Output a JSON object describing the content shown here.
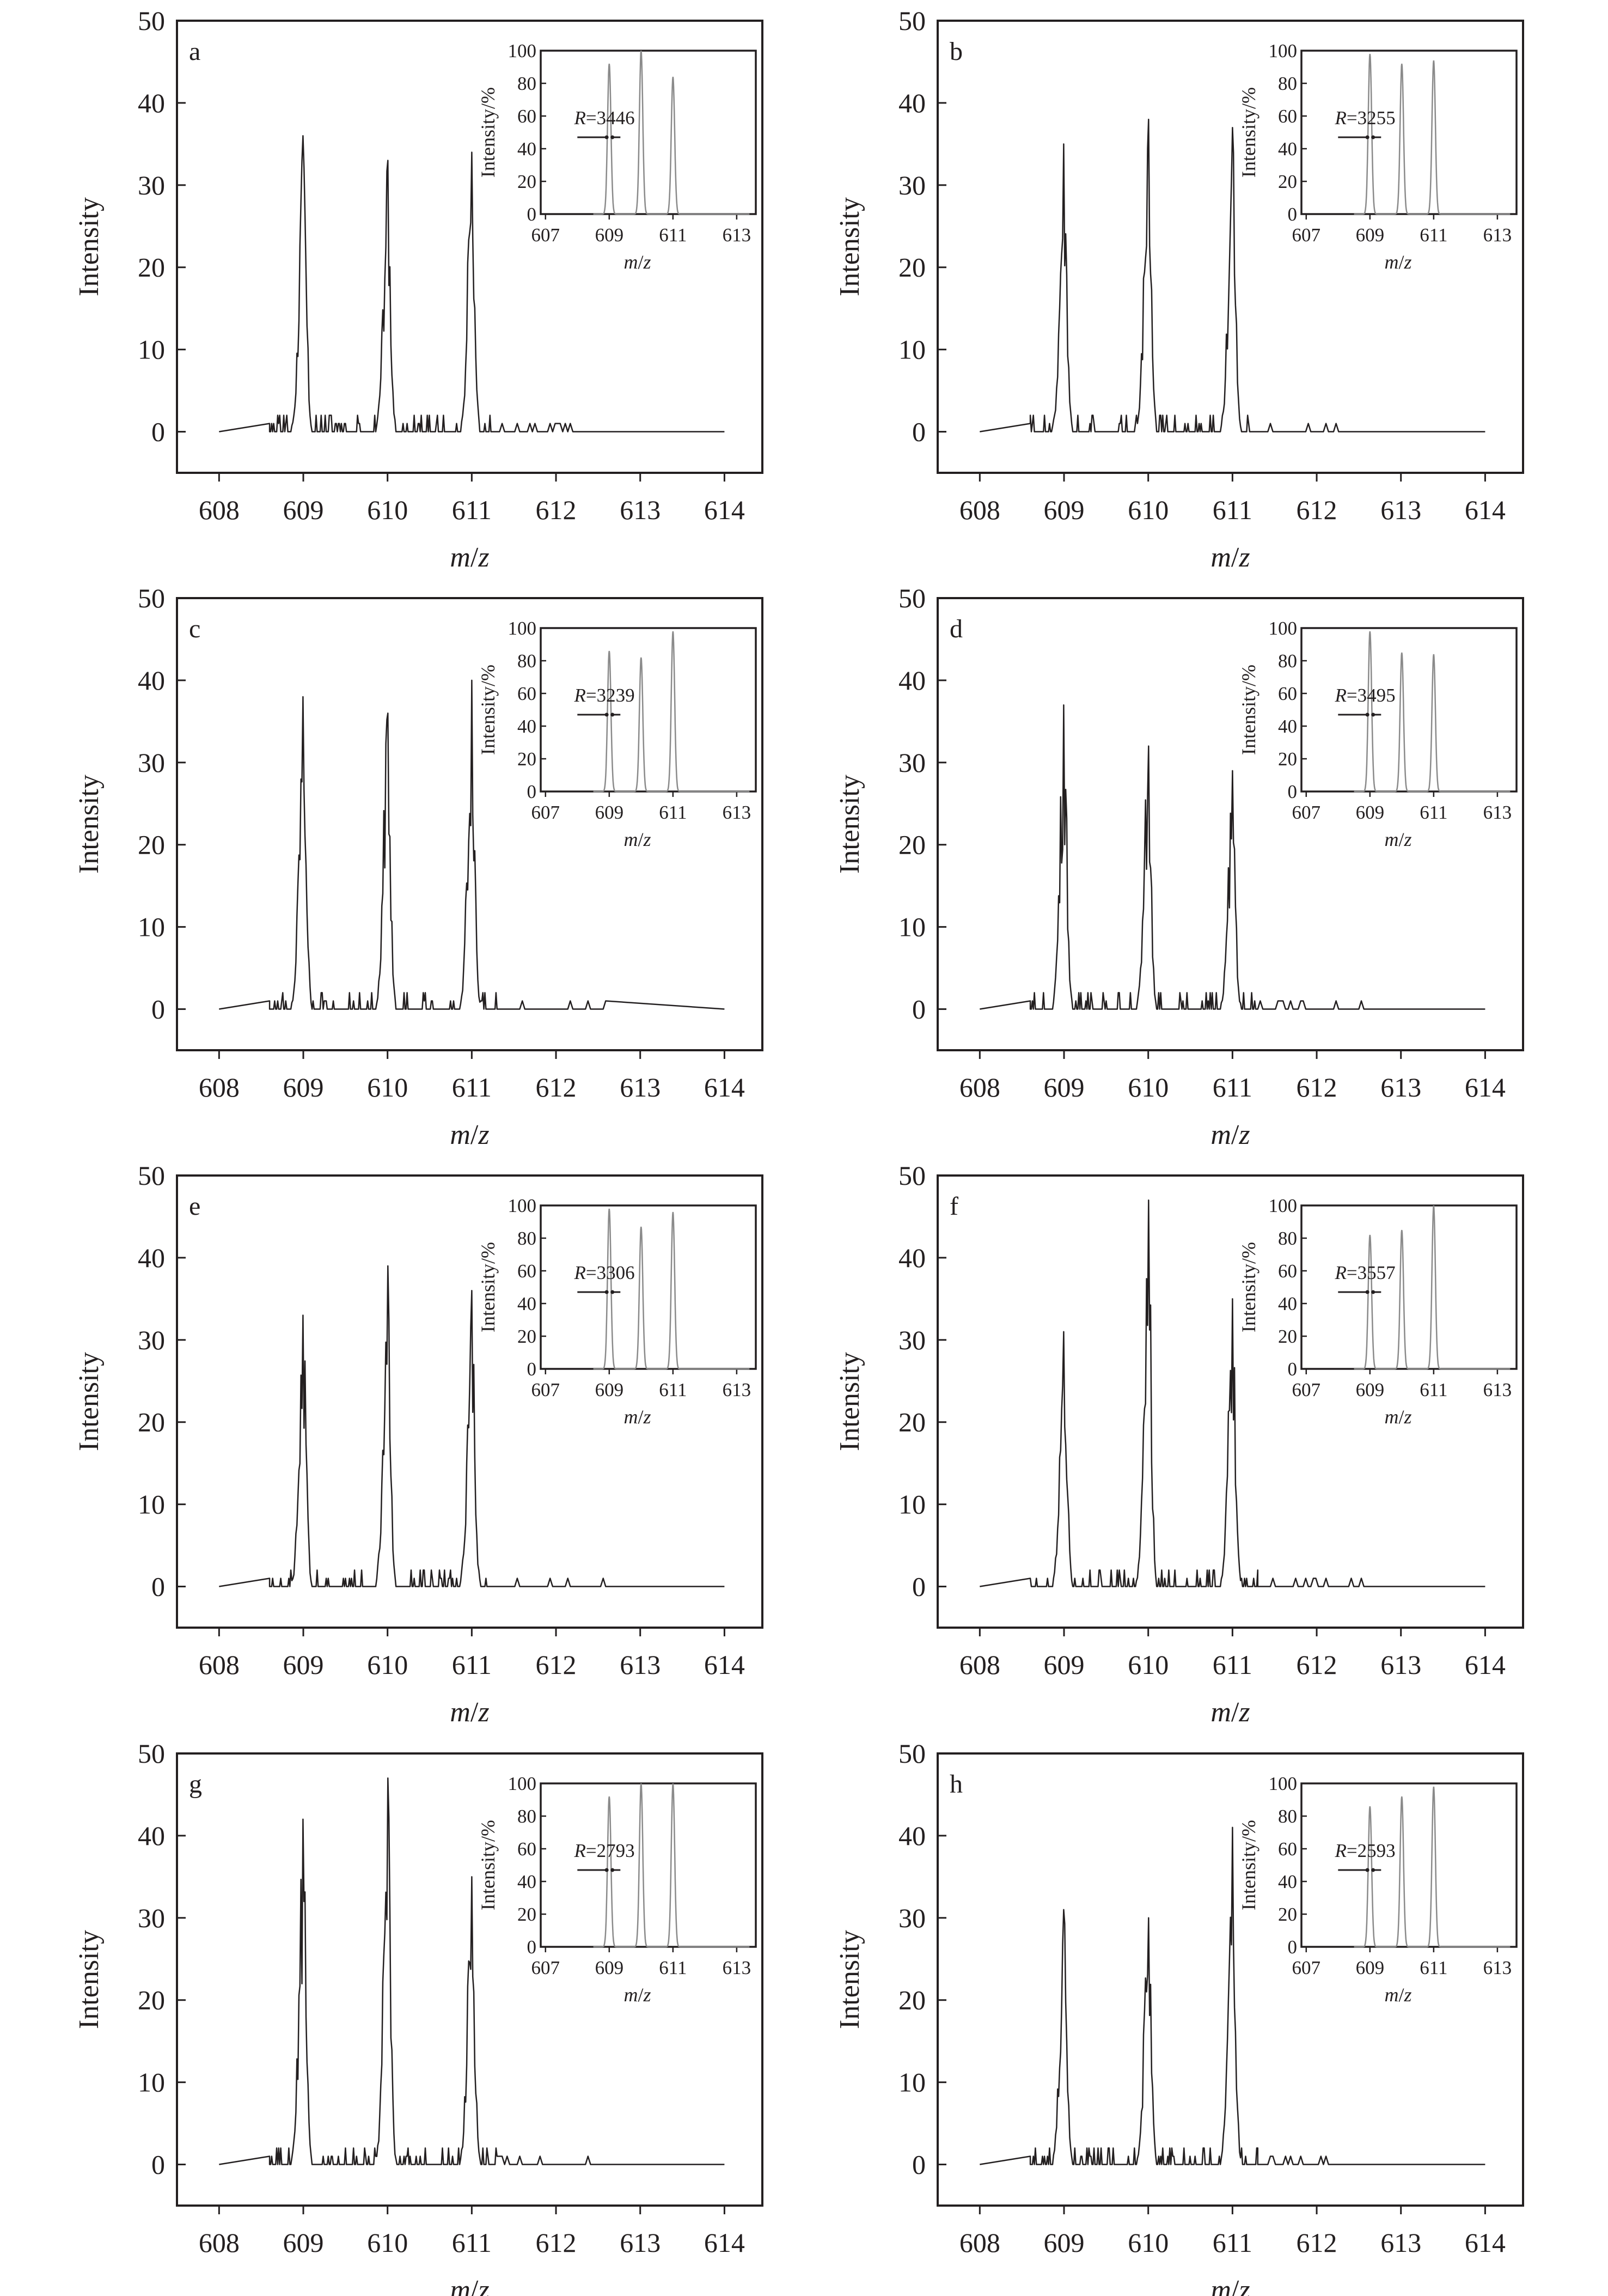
{
  "chart_data": [
    {
      "panel": "a",
      "type": "line",
      "xlabel_main": "m",
      "xlabel_sep": "/",
      "xlabel_z": "z",
      "ylabel": "Intensity",
      "xlim": [
        607.5,
        614.45
      ],
      "ylim": [
        -5,
        50
      ],
      "xticks": [
        "608",
        "609",
        "610",
        "611",
        "612",
        "613",
        "614"
      ],
      "yticks": [
        "0",
        "10",
        "20",
        "30",
        "40",
        "50"
      ],
      "peaks": [
        {
          "mz": 609,
          "intensity": 36
        },
        {
          "mz": 610,
          "intensity": 33
        },
        {
          "mz": 611,
          "intensity": 34
        }
      ],
      "inset": {
        "ylabel": "Intensity/%",
        "xlim": [
          606.85,
          613.6
        ],
        "ylim": [
          0,
          100
        ],
        "xticks": [
          "607",
          "609",
          "611",
          "613"
        ],
        "yticks": [
          "0",
          "20",
          "40",
          "60",
          "80",
          "100"
        ],
        "peaks": [
          {
            "mz": 609,
            "intensity": 92
          },
          {
            "mz": 610,
            "intensity": 100
          },
          {
            "mz": 611,
            "intensity": 84
          }
        ],
        "resolution_label": "R",
        "resolution_value": "=3446"
      }
    },
    {
      "panel": "b",
      "type": "line",
      "xlabel_main": "m",
      "xlabel_sep": "/",
      "xlabel_z": "z",
      "ylabel": "Intensity",
      "xlim": [
        607.5,
        614.45
      ],
      "ylim": [
        -5,
        50
      ],
      "xticks": [
        "608",
        "609",
        "610",
        "611",
        "612",
        "613",
        "614"
      ],
      "yticks": [
        "0",
        "10",
        "20",
        "30",
        "40",
        "50"
      ],
      "peaks": [
        {
          "mz": 609,
          "intensity": 35
        },
        {
          "mz": 610,
          "intensity": 38
        },
        {
          "mz": 611,
          "intensity": 37
        }
      ],
      "inset": {
        "ylabel": "Intensity/%",
        "xlim": [
          606.85,
          613.6
        ],
        "ylim": [
          0,
          100
        ],
        "xticks": [
          "607",
          "609",
          "611",
          "613"
        ],
        "yticks": [
          "0",
          "20",
          "40",
          "60",
          "80",
          "100"
        ],
        "peaks": [
          {
            "mz": 609,
            "intensity": 98
          },
          {
            "mz": 610,
            "intensity": 92
          },
          {
            "mz": 611,
            "intensity": 94
          }
        ],
        "resolution_label": "R",
        "resolution_value": "=3255"
      }
    },
    {
      "panel": "c",
      "type": "line",
      "xlabel_main": "m",
      "xlabel_sep": "/",
      "xlabel_z": "z",
      "ylabel": "Intensity",
      "xlim": [
        607.5,
        614.45
      ],
      "ylim": [
        -5,
        50
      ],
      "xticks": [
        "608",
        "609",
        "610",
        "611",
        "612",
        "613",
        "614"
      ],
      "yticks": [
        "0",
        "10",
        "20",
        "30",
        "40",
        "50"
      ],
      "peaks": [
        {
          "mz": 609,
          "intensity": 38
        },
        {
          "mz": 610,
          "intensity": 36
        },
        {
          "mz": 611,
          "intensity": 40
        }
      ],
      "inset": {
        "ylabel": "Intensity/%",
        "xlim": [
          606.85,
          613.6
        ],
        "ylim": [
          0,
          100
        ],
        "xticks": [
          "607",
          "609",
          "611",
          "613"
        ],
        "yticks": [
          "0",
          "20",
          "40",
          "60",
          "80",
          "100"
        ],
        "peaks": [
          {
            "mz": 609,
            "intensity": 86
          },
          {
            "mz": 610,
            "intensity": 82
          },
          {
            "mz": 611,
            "intensity": 98
          }
        ],
        "resolution_label": "R",
        "resolution_value": "=3239"
      }
    },
    {
      "panel": "d",
      "type": "line",
      "xlabel_main": "m",
      "xlabel_sep": "/",
      "xlabel_z": "z",
      "ylabel": "Intensity",
      "xlim": [
        607.5,
        614.45
      ],
      "ylim": [
        -5,
        50
      ],
      "xticks": [
        "608",
        "609",
        "610",
        "611",
        "612",
        "613",
        "614"
      ],
      "yticks": [
        "0",
        "10",
        "20",
        "30",
        "40",
        "50"
      ],
      "peaks": [
        {
          "mz": 609,
          "intensity": 37
        },
        {
          "mz": 610,
          "intensity": 32
        },
        {
          "mz": 611,
          "intensity": 29
        }
      ],
      "inset": {
        "ylabel": "Intensity/%",
        "xlim": [
          606.85,
          613.6
        ],
        "ylim": [
          0,
          100
        ],
        "xticks": [
          "607",
          "609",
          "611",
          "613"
        ],
        "yticks": [
          "0",
          "20",
          "40",
          "60",
          "80",
          "100"
        ],
        "peaks": [
          {
            "mz": 609,
            "intensity": 98
          },
          {
            "mz": 610,
            "intensity": 85
          },
          {
            "mz": 611,
            "intensity": 84
          }
        ],
        "resolution_label": "R",
        "resolution_value": "=3495"
      }
    },
    {
      "panel": "e",
      "type": "line",
      "xlabel_main": "m",
      "xlabel_sep": "/",
      "xlabel_z": "z",
      "ylabel": "Intensity",
      "xlim": [
        607.5,
        614.45
      ],
      "ylim": [
        -5,
        50
      ],
      "xticks": [
        "608",
        "609",
        "610",
        "611",
        "612",
        "613",
        "614"
      ],
      "yticks": [
        "0",
        "10",
        "20",
        "30",
        "40",
        "50"
      ],
      "peaks": [
        {
          "mz": 609,
          "intensity": 33
        },
        {
          "mz": 610,
          "intensity": 39
        },
        {
          "mz": 611,
          "intensity": 36
        }
      ],
      "inset": {
        "ylabel": "Intensity/%",
        "xlim": [
          606.85,
          613.6
        ],
        "ylim": [
          0,
          100
        ],
        "xticks": [
          "607",
          "609",
          "611",
          "613"
        ],
        "yticks": [
          "0",
          "20",
          "40",
          "60",
          "80",
          "100"
        ],
        "peaks": [
          {
            "mz": 609,
            "intensity": 98
          },
          {
            "mz": 610,
            "intensity": 87
          },
          {
            "mz": 611,
            "intensity": 96
          }
        ],
        "resolution_label": "R",
        "resolution_value": "=3306"
      }
    },
    {
      "panel": "f",
      "type": "line",
      "xlabel_main": "m",
      "xlabel_sep": "/",
      "xlabel_z": "z",
      "ylabel": "Intensity",
      "xlim": [
        607.5,
        614.45
      ],
      "ylim": [
        -5,
        50
      ],
      "xticks": [
        "608",
        "609",
        "610",
        "611",
        "612",
        "613",
        "614"
      ],
      "yticks": [
        "0",
        "10",
        "20",
        "30",
        "40",
        "50"
      ],
      "peaks": [
        {
          "mz": 609,
          "intensity": 31
        },
        {
          "mz": 610,
          "intensity": 47
        },
        {
          "mz": 611,
          "intensity": 35
        }
      ],
      "inset": {
        "ylabel": "Intensity/%",
        "xlim": [
          606.85,
          613.6
        ],
        "ylim": [
          0,
          100
        ],
        "xticks": [
          "607",
          "609",
          "611",
          "613"
        ],
        "yticks": [
          "0",
          "20",
          "40",
          "60",
          "80",
          "100"
        ],
        "peaks": [
          {
            "mz": 609,
            "intensity": 82
          },
          {
            "mz": 610,
            "intensity": 85
          },
          {
            "mz": 611,
            "intensity": 100
          }
        ],
        "resolution_label": "R",
        "resolution_value": "=3557"
      }
    },
    {
      "panel": "g",
      "type": "line",
      "xlabel_main": "m",
      "xlabel_sep": "/",
      "xlabel_z": "z",
      "ylabel": "Intensity",
      "xlim": [
        607.5,
        614.45
      ],
      "ylim": [
        -5,
        50
      ],
      "xticks": [
        "608",
        "609",
        "610",
        "611",
        "612",
        "613",
        "614"
      ],
      "yticks": [
        "0",
        "10",
        "20",
        "30",
        "40",
        "50"
      ],
      "peaks": [
        {
          "mz": 609,
          "intensity": 42
        },
        {
          "mz": 610,
          "intensity": 47
        },
        {
          "mz": 611,
          "intensity": 35
        }
      ],
      "inset": {
        "ylabel": "Intensity/%",
        "xlim": [
          606.85,
          613.6
        ],
        "ylim": [
          0,
          100
        ],
        "xticks": [
          "607",
          "609",
          "611",
          "613"
        ],
        "yticks": [
          "0",
          "20",
          "40",
          "60",
          "80",
          "100"
        ],
        "peaks": [
          {
            "mz": 609,
            "intensity": 92
          },
          {
            "mz": 610,
            "intensity": 100
          },
          {
            "mz": 611,
            "intensity": 100
          }
        ],
        "resolution_label": "R",
        "resolution_value": "=2793"
      }
    },
    {
      "panel": "h",
      "type": "line",
      "xlabel_main": "m",
      "xlabel_sep": "/",
      "xlabel_z": "z",
      "ylabel": "Intensity",
      "xlim": [
        607.5,
        614.45
      ],
      "ylim": [
        -5,
        50
      ],
      "xticks": [
        "608",
        "609",
        "610",
        "611",
        "612",
        "613",
        "614"
      ],
      "yticks": [
        "0",
        "10",
        "20",
        "30",
        "40",
        "50"
      ],
      "peaks": [
        {
          "mz": 609,
          "intensity": 31
        },
        {
          "mz": 610,
          "intensity": 30
        },
        {
          "mz": 611,
          "intensity": 41
        }
      ],
      "inset": {
        "ylabel": "Intensity/%",
        "xlim": [
          606.85,
          613.6
        ],
        "ylim": [
          0,
          100
        ],
        "xticks": [
          "607",
          "609",
          "611",
          "613"
        ],
        "yticks": [
          "0",
          "20",
          "40",
          "60",
          "80",
          "100"
        ],
        "peaks": [
          {
            "mz": 609,
            "intensity": 86
          },
          {
            "mz": 610,
            "intensity": 92
          },
          {
            "mz": 611,
            "intensity": 98
          }
        ],
        "resolution_label": "R",
        "resolution_value": "=2593"
      }
    }
  ]
}
